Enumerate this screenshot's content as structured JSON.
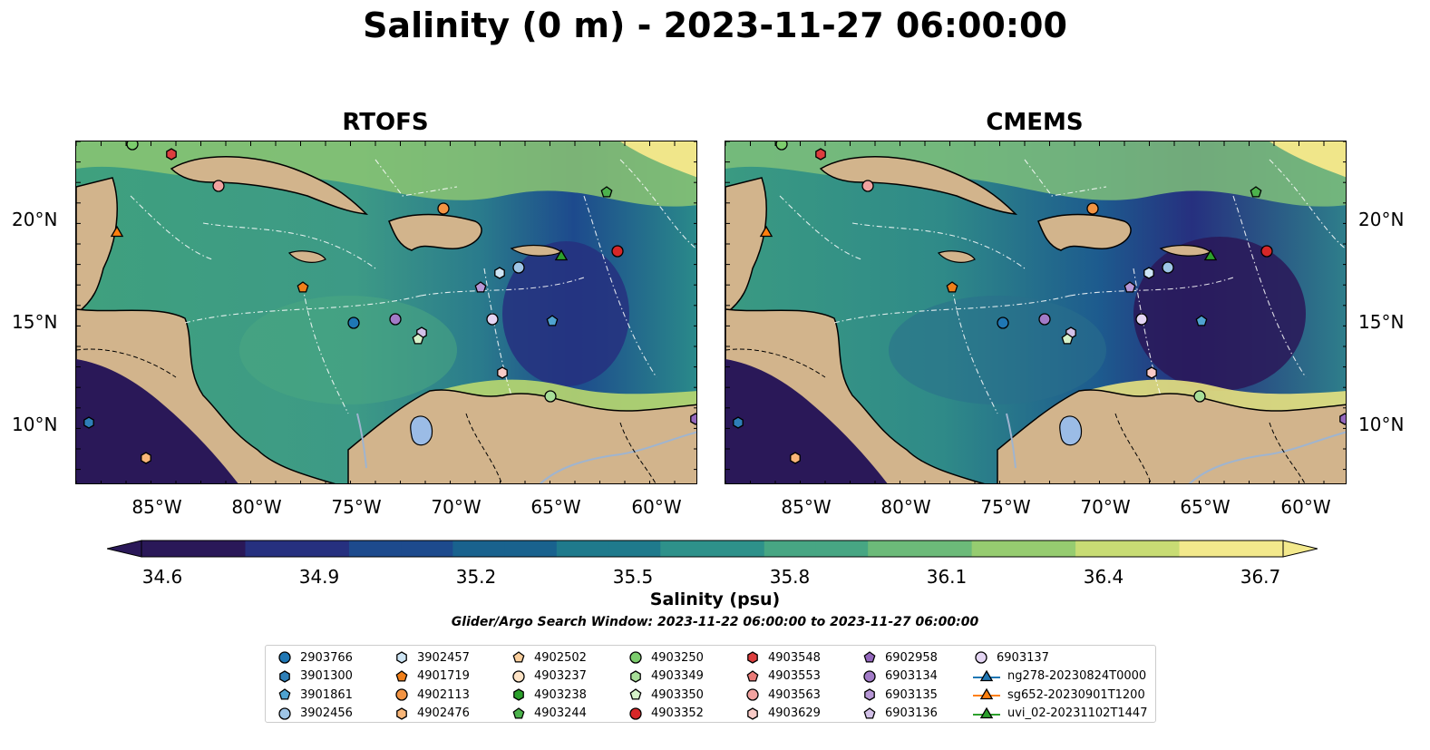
{
  "title": "Salinity (0 m) - 2023-11-27 06:00:00",
  "panels": [
    {
      "title": "RTOFS"
    },
    {
      "title": "CMEMS"
    }
  ],
  "lat_labels": [
    "20°N",
    "15°N",
    "10°N"
  ],
  "lon_labels": [
    "85°W",
    "80°W",
    "75°W",
    "70°W",
    "65°W",
    "60°W"
  ],
  "colorbar": {
    "label": "Salinity (psu)",
    "ticks": [
      "34.6",
      "34.9",
      "35.2",
      "35.5",
      "35.8",
      "36.1",
      "36.4",
      "36.7"
    ],
    "min": 34.6,
    "max": 36.7,
    "colors": [
      "#2a1858",
      "#26307f",
      "#1d4a8d",
      "#19628e",
      "#1f7a8c",
      "#2e918a",
      "#47a683",
      "#6cba79",
      "#96cc70",
      "#c8dc74",
      "#f3e98c"
    ],
    "extend": "both"
  },
  "search_window": "Glider/Argo Search Window: 2023-11-22 06:00:00 to 2023-11-27 06:00:00",
  "legend": {
    "columns": [
      [
        {
          "label": "2903766",
          "marker": "circle",
          "color": "#1f77b4"
        },
        {
          "label": "3901300",
          "marker": "hexagon",
          "color": "#2e7fb8"
        },
        {
          "label": "3901861",
          "marker": "pentagon",
          "color": "#4fa3d1"
        },
        {
          "label": "3902456",
          "marker": "circle",
          "color": "#9ec5e6"
        }
      ],
      [
        {
          "label": "3902457",
          "marker": "hexagon",
          "color": "#cde5f5"
        },
        {
          "label": "4901719",
          "marker": "pentagon",
          "color": "#f07f1a"
        },
        {
          "label": "4902113",
          "marker": "circle",
          "color": "#f39443"
        },
        {
          "label": "4902476",
          "marker": "hexagon",
          "color": "#f9b678"
        }
      ],
      [
        {
          "label": "4902502",
          "marker": "pentagon",
          "color": "#fbcf9d"
        },
        {
          "label": "4903237",
          "marker": "circle",
          "color": "#fde3c6"
        },
        {
          "label": "4903238",
          "marker": "hexagon",
          "color": "#2ca02c"
        },
        {
          "label": "4903244",
          "marker": "pentagon",
          "color": "#4cb34c"
        }
      ],
      [
        {
          "label": "4903250",
          "marker": "circle",
          "color": "#7ccd6d"
        },
        {
          "label": "4903349",
          "marker": "hexagon",
          "color": "#a8df98"
        },
        {
          "label": "4903350",
          "marker": "pentagon",
          "color": "#d6f2c9"
        },
        {
          "label": "4903352",
          "marker": "circle",
          "color": "#d62728"
        }
      ],
      [
        {
          "label": "4903548",
          "marker": "hexagon",
          "color": "#dc3e3e"
        },
        {
          "label": "4903553",
          "marker": "pentagon",
          "color": "#ea7b78"
        },
        {
          "label": "4903563",
          "marker": "circle",
          "color": "#f2a3a0"
        },
        {
          "label": "4903629",
          "marker": "hexagon",
          "color": "#f9cbc7"
        }
      ],
      [
        {
          "label": "6902958",
          "marker": "pentagon",
          "color": "#9467bd"
        },
        {
          "label": "6903134",
          "marker": "circle",
          "color": "#a27bc7"
        },
        {
          "label": "6903135",
          "marker": "hexagon",
          "color": "#b797d6"
        },
        {
          "label": "6903136",
          "marker": "pentagon",
          "color": "#d3c1e8"
        }
      ],
      [
        {
          "label": "6903137",
          "marker": "circle",
          "color": "#e4d5f3"
        },
        {
          "label": "ng278-20230824T0000",
          "marker": "triangle-line",
          "color": "#1f77b4"
        },
        {
          "label": "sg652-20230901T1200",
          "marker": "triangle-line",
          "color": "#ff7f0e"
        },
        {
          "label": "uvi_02-20231102T1447",
          "marker": "triangle-line",
          "color": "#2ca02c"
        }
      ]
    ]
  },
  "map_colors": {
    "land": "#d2b48c",
    "lake": "#9bbce6",
    "river": "#9fb4cf"
  }
}
